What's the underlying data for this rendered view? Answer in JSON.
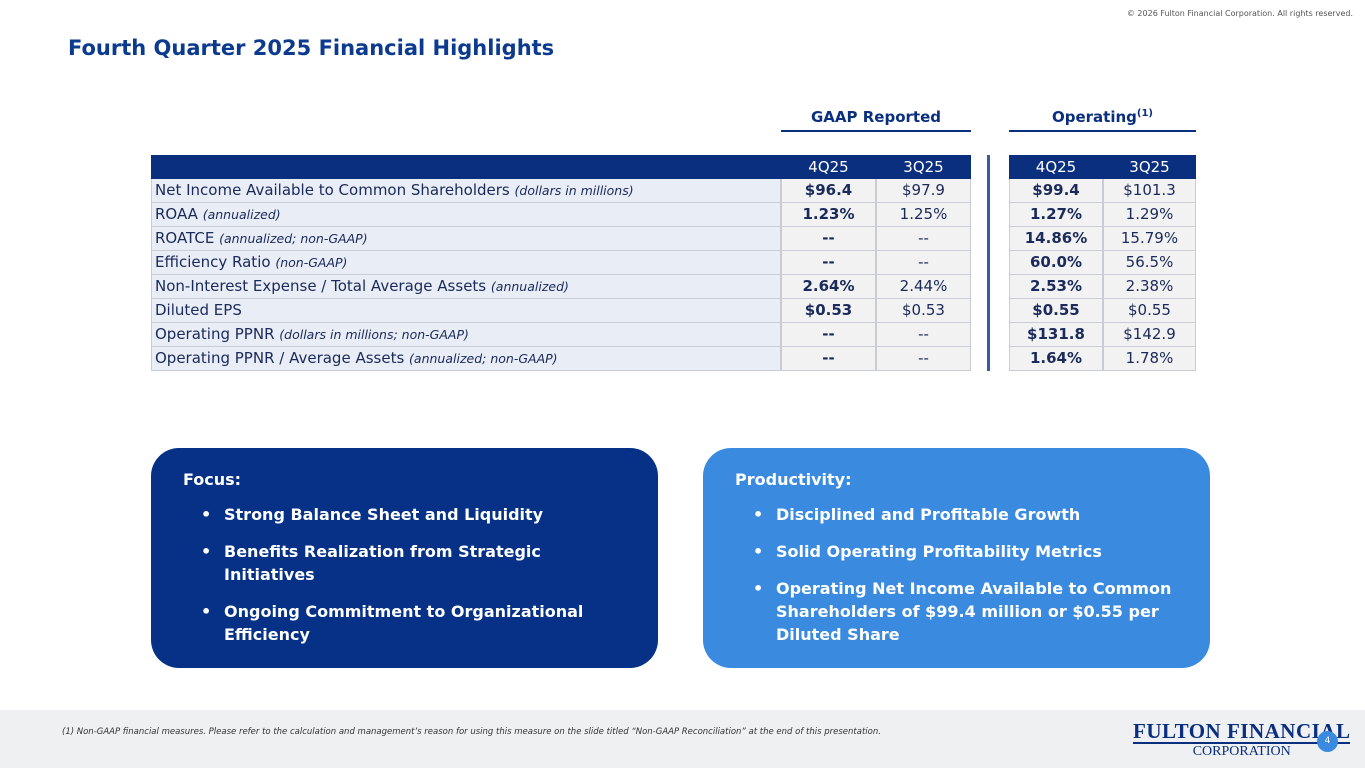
{
  "copyright": "© 2026 Fulton Financial Corporation.  All rights reserved.",
  "title": "Fourth Quarter 2025 Financial Highlights",
  "table": {
    "groups": [
      {
        "label": "GAAP Reported"
      },
      {
        "label": "Operating",
        "sup": "(1)"
      }
    ],
    "columns": [
      "4Q25",
      "3Q25",
      "4Q25",
      "3Q25"
    ],
    "rows": [
      {
        "label": "Net Income Available to Common Shareholders",
        "note": "(dollars in millions)",
        "cells": [
          "$96.4",
          "$97.9",
          "$99.4",
          "$101.3"
        ]
      },
      {
        "label": "ROAA",
        "note": "(annualized)",
        "cells": [
          "1.23%",
          "1.25%",
          "1.27%",
          "1.29%"
        ]
      },
      {
        "label": "ROATCE",
        "note": "(annualized; non-GAAP)",
        "cells": [
          "--",
          "--",
          "14.86%",
          "15.79%"
        ]
      },
      {
        "label": "Efficiency Ratio",
        "note": "(non-GAAP)",
        "cells": [
          "--",
          "--",
          "60.0%",
          "56.5%"
        ]
      },
      {
        "label": "Non-Interest Expense / Total Average Assets",
        "note": "(annualized)",
        "cells": [
          "2.64%",
          "2.44%",
          "2.53%",
          "2.38%"
        ]
      },
      {
        "label": "Diluted EPS",
        "note": null,
        "cells": [
          "$0.53",
          "$0.53",
          "$0.55",
          "$0.55"
        ]
      },
      {
        "label": "Operating PPNR",
        "note": "(dollars in millions; non-GAAP)",
        "cells": [
          "--",
          "--",
          "$131.8",
          "$142.9"
        ]
      },
      {
        "label": "Operating PPNR / Average Assets",
        "note": "(annualized; non-GAAP)",
        "cells": [
          "--",
          "--",
          "1.64%",
          "1.78%"
        ]
      }
    ]
  },
  "panels": [
    {
      "heading": "Focus:",
      "bullets": [
        "Strong Balance Sheet and Liquidity",
        "Benefits Realization from Strategic Initiatives",
        "Ongoing Commitment to Organizational Efficiency"
      ]
    },
    {
      "heading": "Productivity:",
      "bullets": [
        "Disciplined and Profitable Growth",
        "Solid Operating Profitability Metrics",
        "Operating Net Income Available to Common Shareholders of $99.4 million or $0.55 per Diluted Share"
      ]
    }
  ],
  "footnote": "(1) Non-GAAP financial measures.  Please refer to the calculation and management’s reason for using this measure on the slide titled “Non-GAAP Reconciliation” at the end of this presentation.",
  "logo": {
    "line1": "FULTON FINANCIAL",
    "line2": "CORPORATION"
  },
  "page_number": 4
}
